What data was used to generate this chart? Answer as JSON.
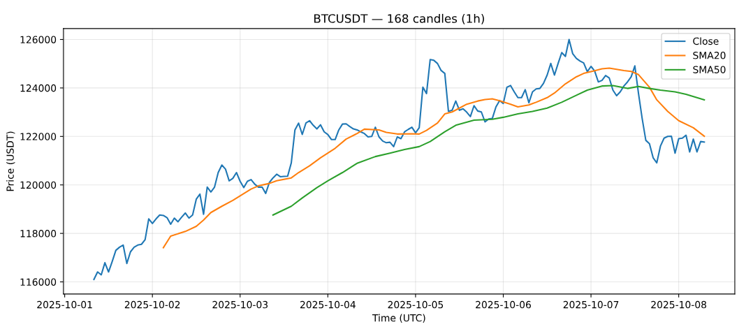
{
  "chart_data": {
    "type": "line",
    "title": "BTCUSDT — 168 candles (1h)",
    "xlabel": "Time (UTC)",
    "ylabel": "Price (USDT)",
    "x": [
      "2025-10-01T08:00",
      "2025-10-01T09:00",
      "2025-10-01T10:00",
      "2025-10-01T11:00",
      "2025-10-01T12:00",
      "2025-10-01T13:00",
      "2025-10-01T14:00",
      "2025-10-01T15:00",
      "2025-10-01T16:00",
      "2025-10-01T17:00",
      "2025-10-01T18:00",
      "2025-10-01T19:00",
      "2025-10-01T20:00",
      "2025-10-01T21:00",
      "2025-10-01T22:00",
      "2025-10-01T23:00",
      "2025-10-02T00:00",
      "2025-10-02T01:00",
      "2025-10-02T02:00",
      "2025-10-02T03:00",
      "2025-10-02T04:00",
      "2025-10-02T05:00",
      "2025-10-02T06:00",
      "2025-10-02T07:00",
      "2025-10-02T08:00",
      "2025-10-02T09:00",
      "2025-10-02T10:00",
      "2025-10-02T11:00",
      "2025-10-02T12:00",
      "2025-10-02T13:00",
      "2025-10-02T14:00",
      "2025-10-02T15:00",
      "2025-10-02T16:00",
      "2025-10-02T17:00",
      "2025-10-02T18:00",
      "2025-10-02T19:00",
      "2025-10-02T20:00",
      "2025-10-02T21:00",
      "2025-10-02T22:00",
      "2025-10-02T23:00",
      "2025-10-03T00:00",
      "2025-10-03T01:00",
      "2025-10-03T02:00",
      "2025-10-03T03:00",
      "2025-10-03T04:00",
      "2025-10-03T05:00",
      "2025-10-03T06:00",
      "2025-10-03T07:00",
      "2025-10-03T08:00",
      "2025-10-03T09:00",
      "2025-10-03T10:00",
      "2025-10-03T11:00",
      "2025-10-03T12:00",
      "2025-10-03T13:00",
      "2025-10-03T14:00",
      "2025-10-03T15:00",
      "2025-10-03T16:00",
      "2025-10-03T17:00",
      "2025-10-03T18:00",
      "2025-10-03T19:00",
      "2025-10-03T20:00",
      "2025-10-03T21:00",
      "2025-10-03T22:00",
      "2025-10-03T23:00",
      "2025-10-04T00:00",
      "2025-10-04T01:00",
      "2025-10-04T02:00",
      "2025-10-04T03:00",
      "2025-10-04T04:00",
      "2025-10-04T05:00",
      "2025-10-04T06:00",
      "2025-10-04T07:00",
      "2025-10-04T08:00",
      "2025-10-04T09:00",
      "2025-10-04T10:00",
      "2025-10-04T11:00",
      "2025-10-04T12:00",
      "2025-10-04T13:00",
      "2025-10-04T14:00",
      "2025-10-04T15:00",
      "2025-10-04T16:00",
      "2025-10-04T17:00",
      "2025-10-04T18:00",
      "2025-10-04T19:00",
      "2025-10-04T20:00",
      "2025-10-04T21:00",
      "2025-10-04T22:00",
      "2025-10-04T23:00",
      "2025-10-05T00:00",
      "2025-10-05T01:00",
      "2025-10-05T02:00",
      "2025-10-05T03:00",
      "2025-10-05T04:00",
      "2025-10-05T05:00",
      "2025-10-05T06:00",
      "2025-10-05T07:00",
      "2025-10-05T08:00",
      "2025-10-05T09:00",
      "2025-10-05T10:00",
      "2025-10-05T11:00",
      "2025-10-05T12:00",
      "2025-10-05T13:00",
      "2025-10-05T14:00",
      "2025-10-05T15:00",
      "2025-10-05T16:00",
      "2025-10-05T17:00",
      "2025-10-05T18:00",
      "2025-10-05T19:00",
      "2025-10-05T20:00",
      "2025-10-05T21:00",
      "2025-10-05T22:00",
      "2025-10-05T23:00",
      "2025-10-06T00:00",
      "2025-10-06T01:00",
      "2025-10-06T02:00",
      "2025-10-06T03:00",
      "2025-10-06T04:00",
      "2025-10-06T05:00",
      "2025-10-06T06:00",
      "2025-10-06T07:00",
      "2025-10-06T08:00",
      "2025-10-06T09:00",
      "2025-10-06T10:00",
      "2025-10-06T11:00",
      "2025-10-06T12:00",
      "2025-10-06T13:00",
      "2025-10-06T14:00",
      "2025-10-06T15:00",
      "2025-10-06T16:00",
      "2025-10-06T17:00",
      "2025-10-06T18:00",
      "2025-10-06T19:00",
      "2025-10-06T20:00",
      "2025-10-06T21:00",
      "2025-10-06T22:00",
      "2025-10-06T23:00",
      "2025-10-07T00:00",
      "2025-10-07T01:00",
      "2025-10-07T02:00",
      "2025-10-07T03:00",
      "2025-10-07T04:00",
      "2025-10-07T05:00",
      "2025-10-07T06:00",
      "2025-10-07T07:00",
      "2025-10-07T08:00",
      "2025-10-07T09:00",
      "2025-10-07T10:00",
      "2025-10-07T11:00",
      "2025-10-07T12:00",
      "2025-10-07T13:00",
      "2025-10-07T14:00",
      "2025-10-07T15:00",
      "2025-10-07T16:00",
      "2025-10-07T17:00",
      "2025-10-07T18:00",
      "2025-10-07T19:00",
      "2025-10-07T20:00",
      "2025-10-07T21:00",
      "2025-10-07T22:00",
      "2025-10-07T23:00",
      "2025-10-08T00:00",
      "2025-10-08T01:00",
      "2025-10-08T02:00",
      "2025-10-08T03:00",
      "2025-10-08T04:00",
      "2025-10-08T05:00",
      "2025-10-08T06:00",
      "2025-10-08T07:00"
    ],
    "series": [
      {
        "name": "Close",
        "color": "#1f77b4",
        "values": [
          116100,
          116410,
          116290,
          116790,
          116410,
          116840,
          117300,
          117430,
          117520,
          116760,
          117240,
          117430,
          117520,
          117550,
          117740,
          118600,
          118410,
          118600,
          118760,
          118740,
          118650,
          118380,
          118630,
          118480,
          118670,
          118840,
          118630,
          118760,
          119410,
          119620,
          118790,
          119910,
          119710,
          119910,
          120510,
          120820,
          120650,
          120170,
          120270,
          120510,
          120150,
          119890,
          120150,
          120220,
          120030,
          119910,
          119910,
          119650,
          120100,
          120290,
          120440,
          120340,
          120350,
          120360,
          120910,
          122270,
          122550,
          122080,
          122550,
          122650,
          122460,
          122310,
          122480,
          122190,
          122080,
          121870,
          121870,
          122270,
          122510,
          122520,
          122410,
          122310,
          122270,
          122190,
          122120,
          121980,
          122000,
          122380,
          121980,
          121810,
          121740,
          121760,
          121580,
          121980,
          121910,
          122190,
          122290,
          122380,
          122150,
          122360,
          124030,
          123770,
          125170,
          125140,
          125010,
          124720,
          124600,
          123030,
          123080,
          123460,
          123080,
          123140,
          123000,
          122820,
          123270,
          123050,
          123010,
          122600,
          122720,
          122740,
          123220,
          123480,
          123360,
          124030,
          124100,
          123840,
          123600,
          123600,
          123930,
          123390,
          123840,
          123960,
          123980,
          124190,
          124530,
          125010,
          124530,
          125010,
          125460,
          125300,
          126000,
          125410,
          125220,
          125110,
          125030,
          124670,
          124890,
          124700,
          124250,
          124310,
          124510,
          124410,
          123910,
          123680,
          123840,
          124080,
          124250,
          124460,
          124910,
          123770,
          122740,
          121840,
          121700,
          121120,
          120910,
          121600,
          121930,
          122000,
          122010,
          121310,
          121910,
          121930,
          122050,
          121360,
          121890,
          121360,
          121790,
          121770
        ]
      },
      {
        "name": "SMA20",
        "color": "#ff7f0e",
        "x": [
          "2025-10-02T03:00",
          "2025-10-02T05:00",
          "2025-10-02T09:00",
          "2025-10-02T12:00",
          "2025-10-02T14:00",
          "2025-10-02T16:00",
          "2025-10-02T19:00",
          "2025-10-02T22:00",
          "2025-10-03T00:00",
          "2025-10-03T03:00",
          "2025-10-03T05:00",
          "2025-10-03T08:00",
          "2025-10-03T10:00",
          "2025-10-03T14:00",
          "2025-10-03T16:00",
          "2025-10-03T19:00",
          "2025-10-03T22:00",
          "2025-10-04T02:00",
          "2025-10-04T05:00",
          "2025-10-04T08:00",
          "2025-10-04T10:00",
          "2025-10-04T14:00",
          "2025-10-04T16:00",
          "2025-10-04T19:00",
          "2025-10-04T23:00",
          "2025-10-05T01:00",
          "2025-10-05T03:00",
          "2025-10-05T06:00",
          "2025-10-05T08:00",
          "2025-10-05T10:00",
          "2025-10-05T12:00",
          "2025-10-05T14:00",
          "2025-10-05T17:00",
          "2025-10-05T19:00",
          "2025-10-05T21:00",
          "2025-10-05T23:00",
          "2025-10-06T02:00",
          "2025-10-06T04:00",
          "2025-10-06T07:00",
          "2025-10-06T09:00",
          "2025-10-06T12:00",
          "2025-10-06T14:00",
          "2025-10-06T17:00",
          "2025-10-06T20:00",
          "2025-10-06T22:00",
          "2025-10-07T01:00",
          "2025-10-07T03:00",
          "2025-10-07T05:00",
          "2025-10-07T09:00",
          "2025-10-07T11:00",
          "2025-10-07T13:00",
          "2025-10-07T16:00",
          "2025-10-07T18:00",
          "2025-10-07T21:00",
          "2025-10-08T00:00",
          "2025-10-08T04:00",
          "2025-10-08T07:00"
        ],
        "values": [
          117410,
          117890,
          118080,
          118290,
          118550,
          118860,
          119120,
          119360,
          119550,
          119830,
          119960,
          120060,
          120170,
          120290,
          120510,
          120790,
          121120,
          121510,
          121890,
          122120,
          122300,
          122270,
          122170,
          122100,
          122110,
          122100,
          122250,
          122550,
          122930,
          123010,
          123170,
          123330,
          123460,
          123520,
          123550,
          123470,
          123330,
          123220,
          123300,
          123410,
          123600,
          123790,
          124170,
          124460,
          124600,
          124710,
          124790,
          124820,
          124720,
          124680,
          124550,
          124030,
          123510,
          123030,
          122650,
          122360,
          122010
        ]
      },
      {
        "name": "SMA50",
        "color": "#2ca02c",
        "x": [
          "2025-10-03T09:00",
          "2025-10-03T14:00",
          "2025-10-03T17:00",
          "2025-10-03T21:00",
          "2025-10-04T00:00",
          "2025-10-04T04:00",
          "2025-10-04T08:00",
          "2025-10-04T13:00",
          "2025-10-04T17:00",
          "2025-10-04T21:00",
          "2025-10-05T01:00",
          "2025-10-05T04:00",
          "2025-10-05T08:00",
          "2025-10-05T11:00",
          "2025-10-05T16:00",
          "2025-10-05T21:00",
          "2025-10-06T00:00",
          "2025-10-06T04:00",
          "2025-10-06T08:00",
          "2025-10-06T12:00",
          "2025-10-06T16:00",
          "2025-10-06T20:00",
          "2025-10-06T23:00",
          "2025-10-07T03:00",
          "2025-10-07T06:00",
          "2025-10-07T10:00",
          "2025-10-07T13:00",
          "2025-10-07T16:00",
          "2025-10-07T19:00",
          "2025-10-07T23:00",
          "2025-10-08T02:00",
          "2025-10-08T07:00"
        ],
        "values": [
          118760,
          119120,
          119460,
          119890,
          120170,
          120510,
          120890,
          121170,
          121310,
          121460,
          121580,
          121790,
          122190,
          122460,
          122670,
          122710,
          122790,
          122930,
          123030,
          123170,
          123410,
          123700,
          123910,
          124080,
          124100,
          123980,
          124060,
          123980,
          123910,
          123840,
          123740,
          123510
        ]
      }
    ],
    "xlim": [
      "2025-09-30T23:39",
      "2025-10-08T15:21"
    ],
    "ylim": [
      115500,
      126450
    ],
    "xticks": [
      "2025-10-01",
      "2025-10-02",
      "2025-10-03",
      "2025-10-04",
      "2025-10-05",
      "2025-10-06",
      "2025-10-07",
      "2025-10-08"
    ],
    "yticks": [
      116000,
      118000,
      120000,
      122000,
      124000,
      126000
    ],
    "grid": true,
    "legend": "top right",
    "line_style": "solid",
    "marker": "none"
  }
}
